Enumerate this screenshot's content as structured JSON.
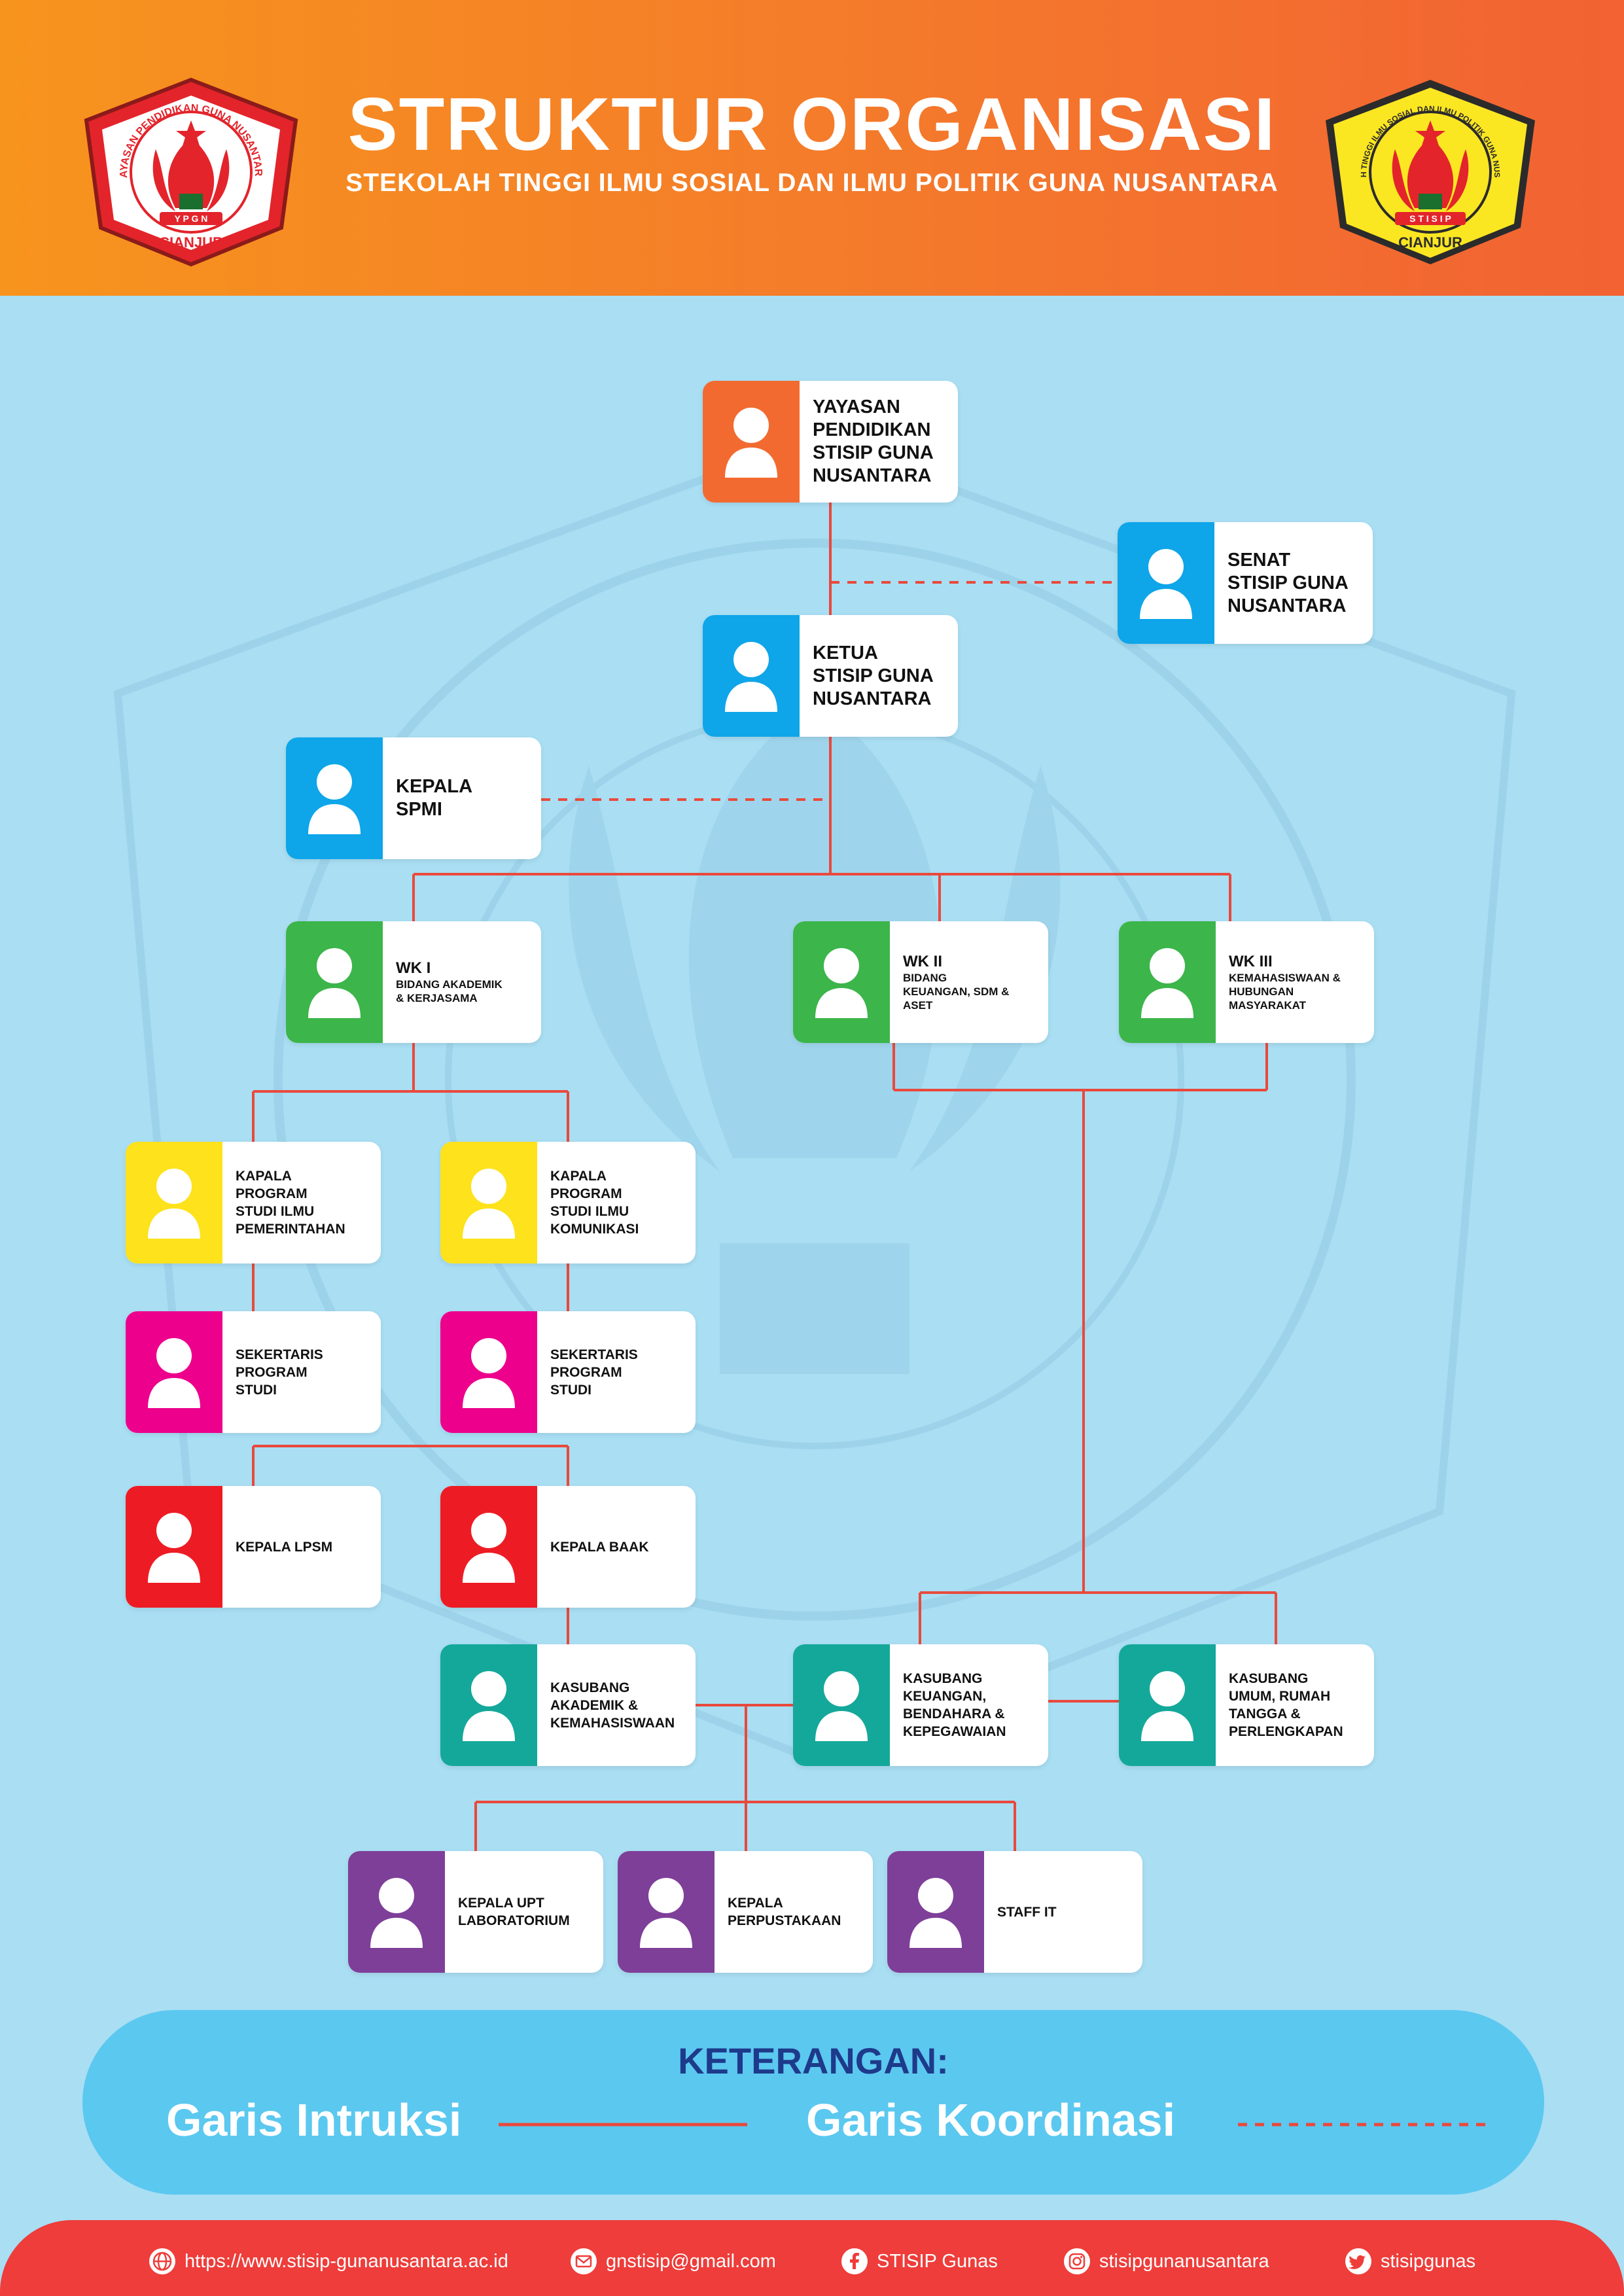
{
  "header": {
    "title": "STRUKTUR ORGANISASI",
    "subtitle": "STEKOLAH TINGGI ILMU SOSIAL DAN ILMU POLITIK GUNA NUSANTARA",
    "logo_left": {
      "ring_text": "YAYASAN PENDIDIKAN GUNA NUSANTARA",
      "bottom_text": "CIANJUR",
      "band_text": "Y P G N"
    },
    "logo_right": {
      "ring_text": "SEKOLAH TINGGI ILMU SOSIAL DAN ILMU POLITIK GUNA NUSANTARA",
      "bottom_text": "CIANJUR",
      "band_text": "S T I S I P"
    }
  },
  "colors": {
    "orange": "#f26a30",
    "blue": "#0ea5e9",
    "green": "#3cb54a",
    "yellow": "#fde21c",
    "magenta": "#ec008c",
    "red": "#ed1c24",
    "teal": "#14a89a",
    "purple": "#7e3f98",
    "line": "#e9493c"
  },
  "nodes": [
    {
      "id": "yayasan",
      "color": "orange",
      "size": "big",
      "label": "YAYASAN\nPENDIDIKAN\nSTISIP GUNA\nNUSANTARA"
    },
    {
      "id": "senat",
      "color": "blue",
      "size": "big",
      "label": "SENAT\nSTISIP GUNA\nNUSANTARA"
    },
    {
      "id": "ketua",
      "color": "blue",
      "size": "big",
      "label": "KETUA\nSTISIP GUNA\nNUSANTARA"
    },
    {
      "id": "spmi",
      "color": "blue",
      "size": "big",
      "label": "KEPALA\nSPMI"
    },
    {
      "id": "wk1",
      "color": "green",
      "size": "split",
      "label": "WK I",
      "sub": "BIDANG AKADEMIK\n& KERJASAMA"
    },
    {
      "id": "wk2",
      "color": "green",
      "size": "split",
      "label": "WK II",
      "sub": "BIDANG\nKEUANGAN, SDM &\nASET"
    },
    {
      "id": "wk3",
      "color": "green",
      "size": "split",
      "label": "WK III",
      "sub": "KEMAHASISWAAN &\nHUBUNGAN\nMASYARAKAT"
    },
    {
      "id": "kps1",
      "color": "yellow",
      "size": "small",
      "label": "KAPALA\nPROGRAM\nSTUDI ILMU\nPEMERINTAHAN"
    },
    {
      "id": "kps2",
      "color": "yellow",
      "size": "small",
      "label": "KAPALA\nPROGRAM\nSTUDI ILMU\nKOMUNIKASI"
    },
    {
      "id": "sek1",
      "color": "magenta",
      "size": "small",
      "label": "SEKERTARIS\nPROGRAM\nSTUDI"
    },
    {
      "id": "sek2",
      "color": "magenta",
      "size": "small",
      "label": "SEKERTARIS\nPROGRAM\nSTUDI"
    },
    {
      "id": "lpsm",
      "color": "red",
      "size": "small",
      "label": "KEPALA LPSM"
    },
    {
      "id": "baak",
      "color": "red",
      "size": "small",
      "label": "KEPALA BAAK"
    },
    {
      "id": "ksb_akad",
      "color": "teal",
      "size": "small",
      "label": "KASUBANG\nAKADEMIK &\nKEMAHASISWAAN"
    },
    {
      "id": "ksb_keu",
      "color": "teal",
      "size": "small",
      "label": "KASUBANG\nKEUANGAN,\nBENDAHARA &\nKEPEGAWAIAN"
    },
    {
      "id": "ksb_umum",
      "color": "teal",
      "size": "small",
      "label": "KASUBANG\nUMUM, RUMAH\nTANGGA &\nPERLENGKAPAN"
    },
    {
      "id": "upt_lab",
      "color": "purple",
      "size": "small",
      "label": "KEPALA UPT\nLABORATORIUM"
    },
    {
      "id": "perpus",
      "color": "purple",
      "size": "small",
      "label": "KEPALA\nPERPUSTAKAAN"
    },
    {
      "id": "staff_it",
      "color": "purple",
      "size": "small",
      "label": "STAFF IT"
    }
  ],
  "legend": {
    "title": "KETERANGAN:",
    "instruction_label": "Garis Intruksi",
    "coordination_label": "Garis Koordinasi"
  },
  "footer": [
    {
      "icon": "globe-icon",
      "text": "https://www.stisip-gunanusantara.ac.id"
    },
    {
      "icon": "email-icon",
      "text": "gnstisip@gmail.com"
    },
    {
      "icon": "facebook-icon",
      "text": "STISIP Gunas"
    },
    {
      "icon": "instagram-icon",
      "text": "stisipgunanusantara"
    },
    {
      "icon": "twitter-icon",
      "text": "stisipgunas"
    }
  ]
}
